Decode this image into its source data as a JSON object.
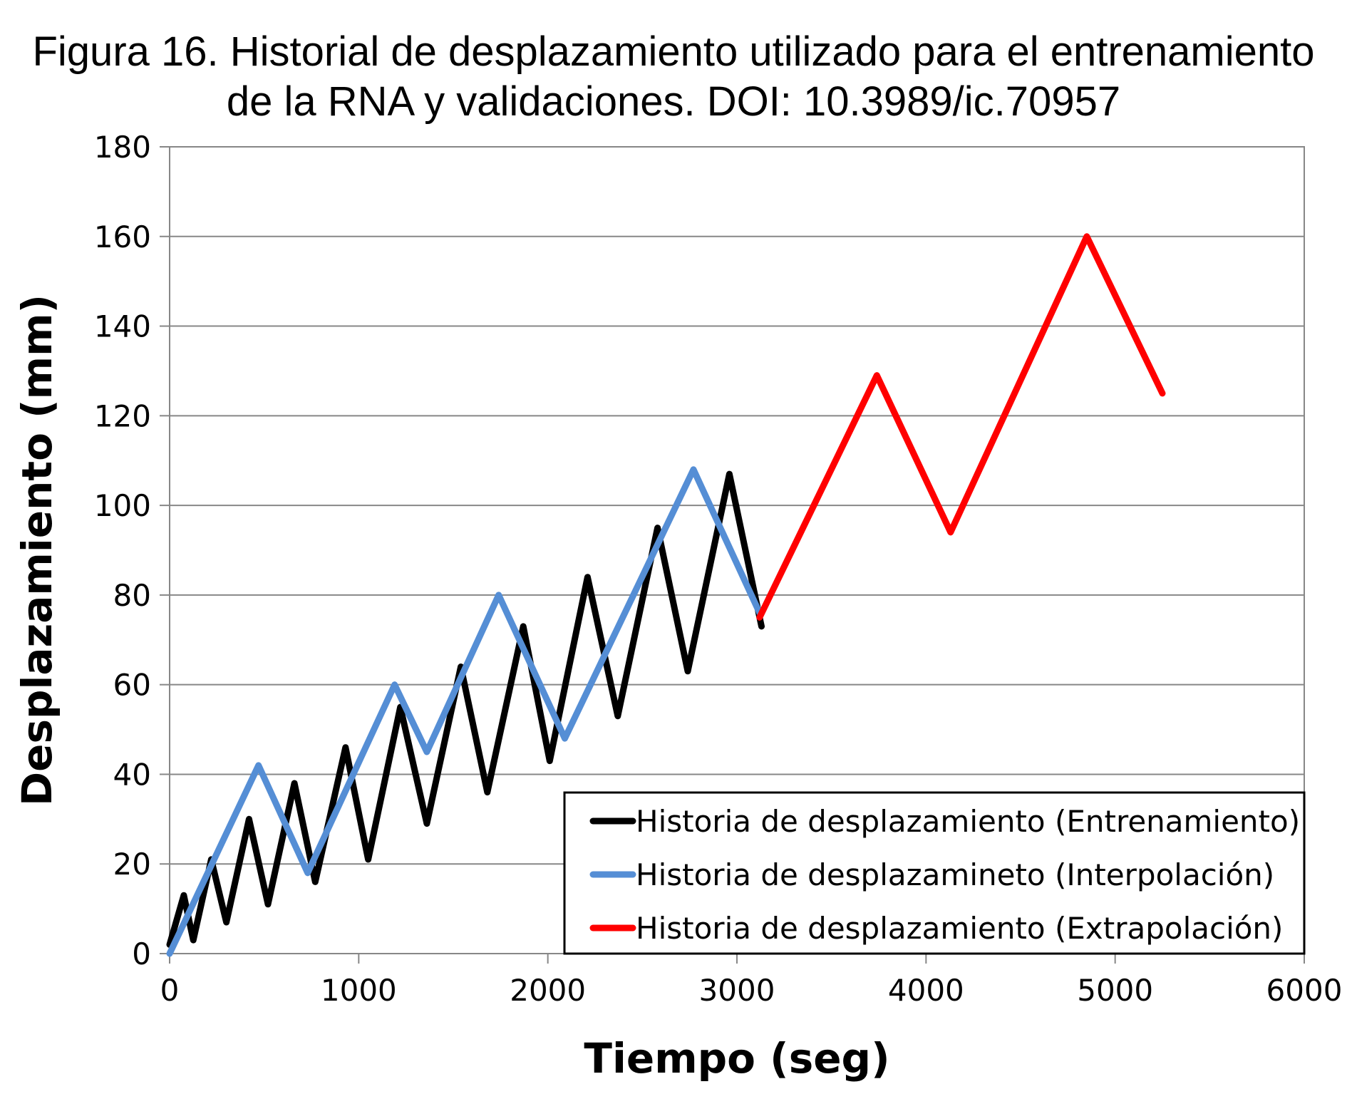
{
  "chart_data": {
    "type": "line",
    "title_lines": [
      "Figura 16. Historial de desplazamiento utilizado para el entrenamiento",
      "de la RNA y validaciones. DOI: 10.3989/ic.70957"
    ],
    "xlabel": "Tiempo  (seg)",
    "ylabel": "Desplazamiento  (mm)",
    "xlim": [
      0,
      6000
    ],
    "ylim": [
      0,
      180
    ],
    "xticks": [
      0,
      1000,
      2000,
      3000,
      4000,
      5000,
      6000
    ],
    "yticks": [
      0,
      20,
      40,
      60,
      80,
      100,
      120,
      140,
      160,
      180
    ],
    "grid": "horizontal",
    "legend_position": "bottom-right",
    "series": [
      {
        "name": "Historia de desplazamiento (Entrenamiento)",
        "color": "#000000",
        "x": [
          0,
          75,
          125,
          220,
          300,
          420,
          520,
          660,
          770,
          930,
          1050,
          1220,
          1360,
          1540,
          1680,
          1870,
          2010,
          2210,
          2370,
          2580,
          2740,
          2960,
          3130
        ],
        "y": [
          2,
          13,
          3,
          21,
          7,
          30,
          11,
          38,
          16,
          46,
          21,
          55,
          29,
          64,
          36,
          73,
          43,
          84,
          53,
          95,
          63,
          107,
          73
        ]
      },
      {
        "name": "Historia de desplazamineto (Interpolación)",
        "color": "#558ED5",
        "x": [
          0,
          470,
          730,
          1190,
          1360,
          1740,
          2090,
          2770,
          3120
        ],
        "y": [
          0,
          42,
          18,
          60,
          45,
          80,
          48,
          108,
          76
        ]
      },
      {
        "name": "Historia de desplazamiento (Extrapolación)",
        "color": "#FF0000",
        "x": [
          3120,
          3740,
          4130,
          4850,
          5250
        ],
        "y": [
          75,
          129,
          94,
          160,
          125
        ]
      }
    ]
  }
}
